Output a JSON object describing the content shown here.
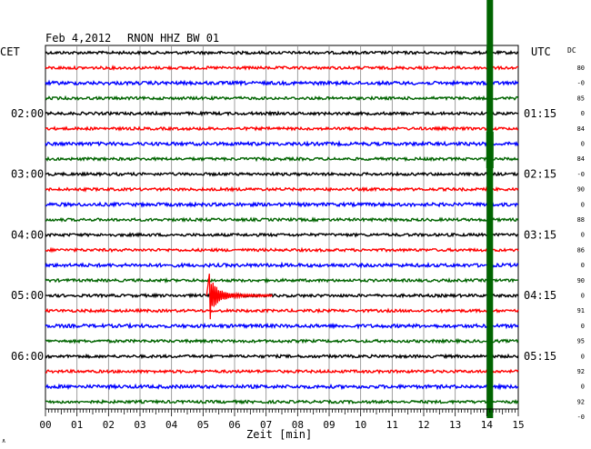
{
  "header": {
    "date": "Feb 4,2012",
    "station": "RNON HHZ BW 01",
    "left_zone": "CET",
    "right_zone": "UTC",
    "dc_label": "DC"
  },
  "chart_data": {
    "type": "line",
    "title": "Feb 4,2012  RNON HHZ BW 01",
    "xlabel": "Zeit [min]",
    "xlim": [
      0,
      15
    ],
    "x_ticks": [
      "00",
      "01",
      "02",
      "03",
      "04",
      "05",
      "06",
      "07",
      "08",
      "09",
      "10",
      "11",
      "12",
      "13",
      "14",
      "15"
    ],
    "left_time_labels": [
      {
        "row": 4,
        "text": "02:00"
      },
      {
        "row": 8,
        "text": "03:00"
      },
      {
        "row": 12,
        "text": "04:00"
      },
      {
        "row": 16,
        "text": "05:00"
      },
      {
        "row": 20,
        "text": "06:00"
      }
    ],
    "right_time_labels": [
      {
        "row": 4,
        "text": "01:15"
      },
      {
        "row": 8,
        "text": "02:15"
      },
      {
        "row": 12,
        "text": "03:15"
      },
      {
        "row": 16,
        "text": "04:15"
      },
      {
        "row": 20,
        "text": "05:15"
      }
    ],
    "dc_values": [
      "80",
      "-0",
      "85",
      "0",
      "84",
      "0",
      "84",
      "-0",
      "90",
      "0",
      "88",
      "0",
      "86",
      "0",
      "90",
      "0",
      "91",
      "0",
      "95",
      "0",
      "92",
      "0",
      "92",
      "-0"
    ],
    "trace_colors": [
      "#000000",
      "#ff0000",
      "#0000ff",
      "#006400"
    ],
    "rows": 24,
    "events": [
      {
        "type": "earthquake",
        "row": 16,
        "minute": 5.2
      },
      {
        "type": "disturbance",
        "minute": 14.1,
        "color": "#006400"
      }
    ]
  },
  "footer": {
    "corner_mark": "∧"
  }
}
